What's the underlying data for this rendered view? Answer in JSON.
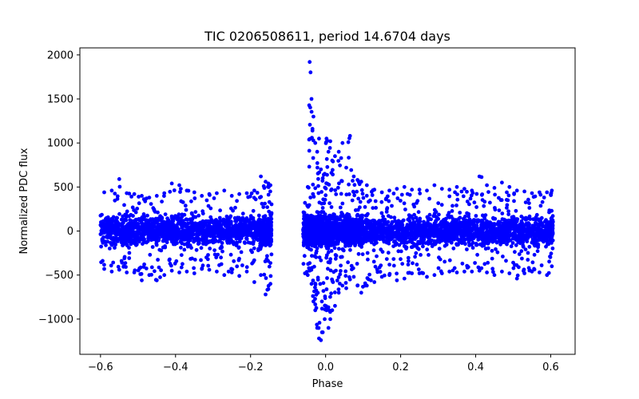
{
  "chart_data": {
    "type": "scatter",
    "title": "TIC 0206508611, period 14.6704 days",
    "xlabel": "Phase",
    "ylabel": "Normalized PDC flux",
    "xlim": [
      -0.655,
      0.665
    ],
    "ylim": [
      -1400,
      2080
    ],
    "xticks": [
      -0.6,
      -0.4,
      -0.2,
      0.0,
      0.2,
      0.4,
      0.6
    ],
    "xtick_labels": [
      "−0.6",
      "−0.4",
      "−0.2",
      "0.0",
      "0.2",
      "0.4",
      "0.6"
    ],
    "yticks": [
      -1000,
      -500,
      0,
      500,
      1000,
      1500,
      2000
    ],
    "ytick_labels": [
      "−1000",
      "−500",
      "0",
      "500",
      "1000",
      "1500",
      "2000"
    ],
    "grid": false,
    "marker_color": "#0000ff",
    "series": [
      {
        "name": "flux",
        "x": [
          -0.6,
          -0.58,
          -0.56,
          -0.54,
          -0.52,
          -0.5,
          -0.48,
          -0.46,
          -0.44,
          -0.42,
          -0.4,
          -0.38,
          -0.36,
          -0.34,
          -0.32,
          -0.3,
          -0.28,
          -0.26,
          -0.24,
          -0.22,
          -0.2,
          -0.18,
          -0.165,
          -0.155,
          -0.15,
          -0.06,
          -0.05,
          -0.045,
          -0.04,
          -0.035,
          -0.03,
          -0.025,
          -0.02,
          -0.015,
          -0.01,
          -0.005,
          0.0,
          0.005,
          0.01,
          0.015,
          0.02,
          0.03,
          0.04,
          0.05,
          0.06,
          0.07,
          0.08,
          0.09,
          0.1,
          0.12,
          0.14,
          0.16,
          0.18,
          0.2,
          0.22,
          0.24,
          0.26,
          0.28,
          0.3,
          0.32,
          0.34,
          0.36,
          0.38,
          0.4,
          0.42,
          0.44,
          0.46,
          0.48,
          0.5,
          0.52,
          0.54,
          0.56,
          0.58,
          0.6
        ],
        "y_max": [
          440,
          460,
          590,
          430,
          420,
          400,
          380,
          400,
          430,
          540,
          520,
          460,
          440,
          400,
          420,
          430,
          460,
          400,
          420,
          430,
          460,
          620,
          560,
          540,
          520,
          320,
          500,
          1920,
          1500,
          1300,
          1000,
          900,
          1050,
          700,
          600,
          650,
          1050,
          900,
          1020,
          800,
          850,
          900,
          1000,
          720,
          1080,
          620,
          580,
          560,
          520,
          470,
          440,
          460,
          480,
          500,
          470,
          470,
          460,
          520,
          480,
          470,
          500,
          480,
          460,
          620,
          520,
          490,
          550,
          500,
          460,
          450,
          430,
          440,
          440,
          460
        ],
        "y_min": [
          -430,
          -460,
          -440,
          -470,
          -470,
          -560,
          -500,
          -560,
          -500,
          -450,
          -470,
          -460,
          -480,
          -430,
          -440,
          -460,
          -500,
          -470,
          -510,
          -460,
          -580,
          -500,
          -720,
          -660,
          -600,
          -480,
          -500,
          -450,
          -600,
          -800,
          -900,
          -1100,
          -1220,
          -1240,
          -1150,
          -1000,
          -900,
          -1100,
          -1000,
          -900,
          -850,
          -700,
          -620,
          -650,
          -550,
          -520,
          -620,
          -700,
          -620,
          -580,
          -520,
          -500,
          -560,
          -540,
          -480,
          -480,
          -520,
          -500,
          -480,
          -460,
          -470,
          -460,
          -460,
          -450,
          -470,
          -500,
          -460,
          -480,
          -540,
          -480,
          -460,
          -470,
          -500,
          -400
        ]
      }
    ]
  }
}
